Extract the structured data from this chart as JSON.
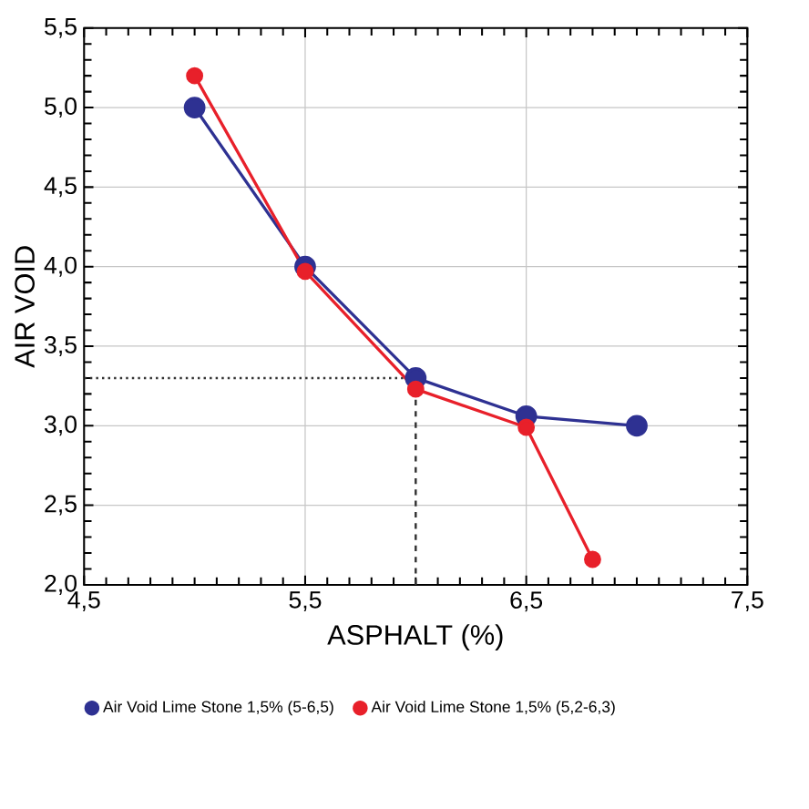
{
  "chart_data": {
    "type": "line",
    "xlabel": "ASPHALT (%)",
    "ylabel": "AIR VOID",
    "xlim": [
      4.5,
      7.5
    ],
    "ylim": [
      2.0,
      5.5
    ],
    "xticks": [
      {
        "value": 4.5,
        "label": "4,5"
      },
      {
        "value": 5.5,
        "label": "5,5"
      },
      {
        "value": 6.5,
        "label": "6,5"
      },
      {
        "value": 7.5,
        "label": "7,5"
      }
    ],
    "yticks": [
      {
        "value": 2.0,
        "label": "2,0"
      },
      {
        "value": 2.5,
        "label": "2,5"
      },
      {
        "value": 3.0,
        "label": "3,0"
      },
      {
        "value": 3.5,
        "label": "3,5"
      },
      {
        "value": 4.0,
        "label": "4,0"
      },
      {
        "value": 4.5,
        "label": "4,5"
      },
      {
        "value": 5.0,
        "label": "5,0"
      },
      {
        "value": 5.5,
        "label": "5,5"
      }
    ],
    "grid": true,
    "legend": "bottom",
    "marker": "circle",
    "line_style": "solid",
    "series": [
      {
        "name": "Air Void Lime Stone 1,5% (5-6,5)",
        "color": "#2e3192",
        "x": [
          5.0,
          5.5,
          6.0,
          6.5,
          7.0
        ],
        "values": [
          5.0,
          4.0,
          3.3,
          3.06,
          3.0
        ]
      },
      {
        "name": "Air Void Lime Stone 1,5% (5,2-6,3)",
        "color": "#e8202a",
        "x": [
          5.0,
          5.5,
          6.0,
          6.5,
          6.8
        ],
        "values": [
          5.2,
          3.97,
          3.23,
          2.99,
          2.16
        ]
      }
    ],
    "ref_lines": [
      {
        "axis": "y",
        "value": 3.3,
        "line_style": "dotted",
        "color": "#333333"
      },
      {
        "axis": "x",
        "value": 6.0,
        "line_style": "dashed",
        "color": "#333333"
      }
    ]
  }
}
